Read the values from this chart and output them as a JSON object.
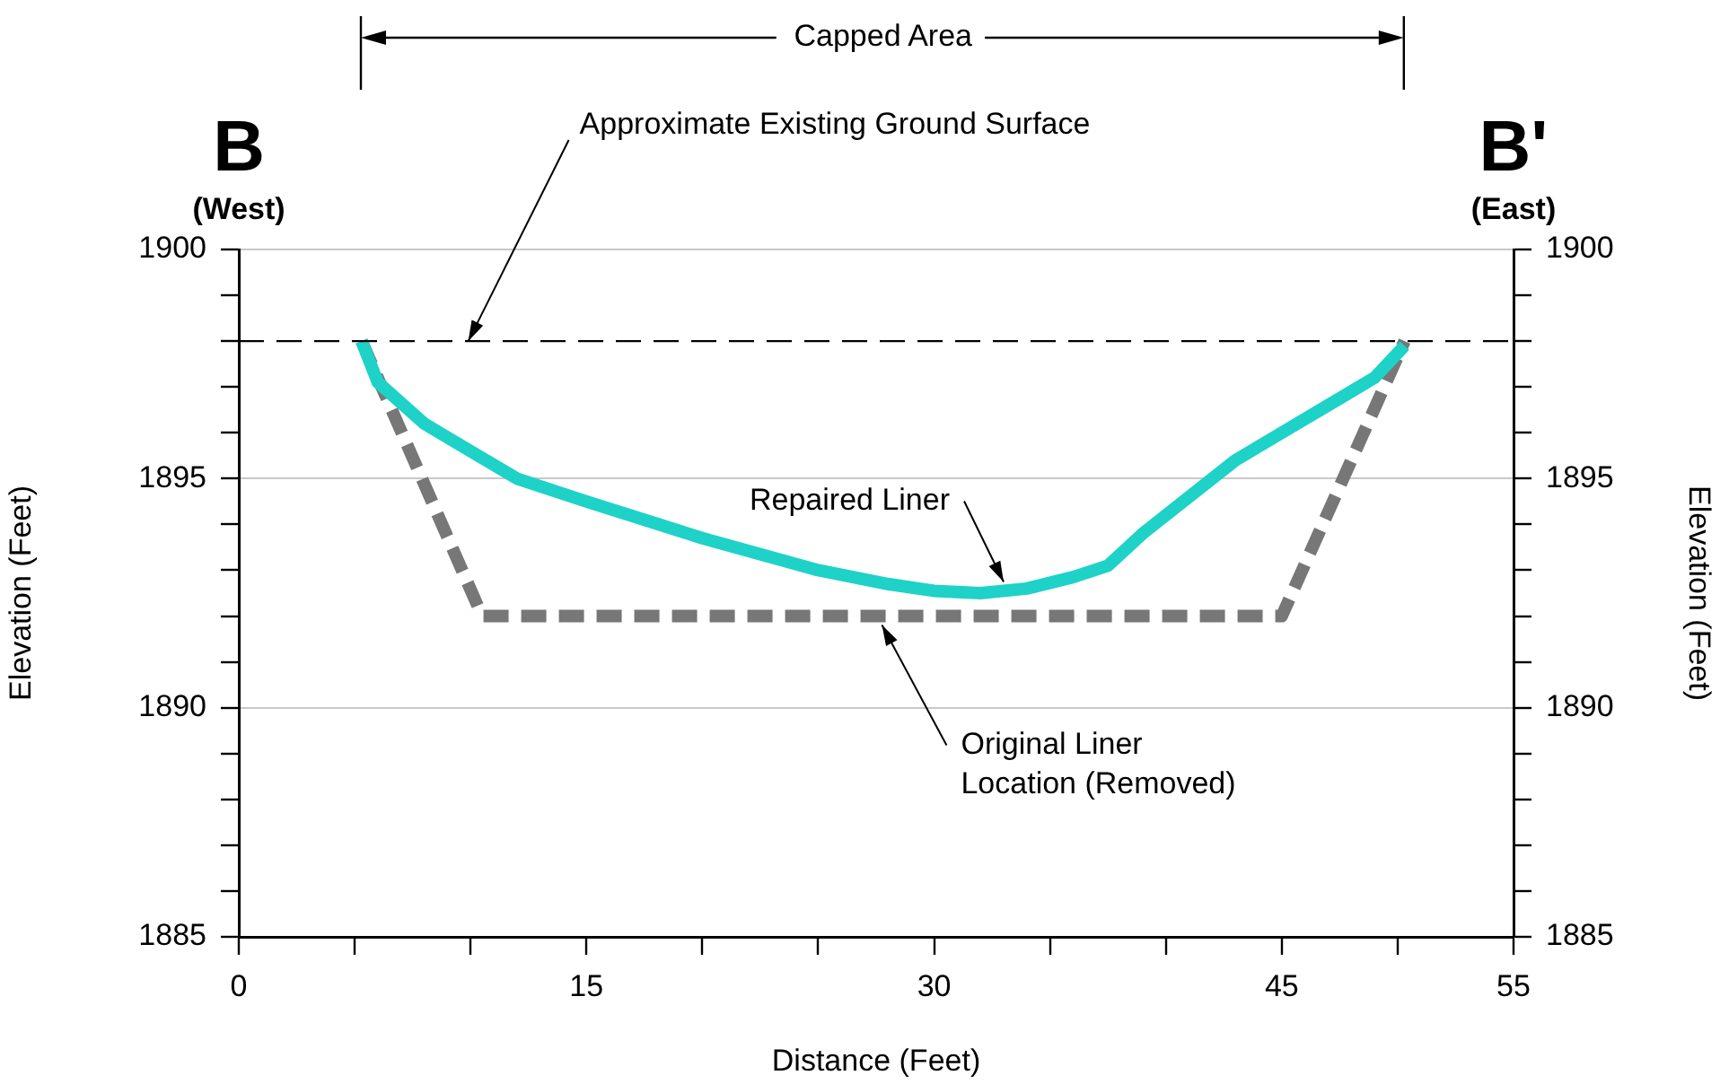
{
  "chart_data": {
    "type": "line",
    "xlabel": "Distance (Feet)",
    "ylabel": "Elevation (Feet)",
    "y2label": "Elevation (Feet)",
    "xlim": [
      0,
      55
    ],
    "xticks": [
      0,
      {
        "value": 5,
        "label": null
      },
      {
        "value": 10,
        "label": null
      },
      15,
      {
        "value": 20,
        "label": null
      },
      {
        "value": 25,
        "label": null
      },
      30,
      {
        "value": 35,
        "label": null
      },
      {
        "value": 40,
        "label": null
      },
      45,
      {
        "value": 50,
        "label": null
      },
      55
    ],
    "ylim": [
      1885,
      1900
    ],
    "yticks": [
      1885,
      {
        "value": 1886,
        "label": null
      },
      {
        "value": 1887,
        "label": null
      },
      {
        "value": 1888,
        "label": null
      },
      {
        "value": 1889,
        "label": null
      },
      1890,
      {
        "value": 1891,
        "label": null
      },
      {
        "value": 1892,
        "label": null
      },
      {
        "value": 1893,
        "label": null
      },
      {
        "value": 1894,
        "label": null
      },
      1895,
      {
        "value": 1896,
        "label": null
      },
      {
        "value": 1897,
        "label": null
      },
      {
        "value": 1898,
        "label": null
      },
      {
        "value": 1899,
        "label": null
      },
      1900
    ],
    "y2lim": [
      1885,
      1900
    ],
    "y2ticks": [
      1885,
      {
        "value": 1886,
        "label": null
      },
      {
        "value": 1887,
        "label": null
      },
      {
        "value": 1888,
        "label": null
      },
      {
        "value": 1889,
        "label": null
      },
      1890,
      {
        "value": 1891,
        "label": null
      },
      {
        "value": 1892,
        "label": null
      },
      {
        "value": 1893,
        "label": null
      },
      {
        "value": 1894,
        "label": null
      },
      1895,
      {
        "value": 1896,
        "label": null
      },
      {
        "value": 1897,
        "label": null
      },
      {
        "value": 1898,
        "label": null
      },
      {
        "value": 1899,
        "label": null
      },
      1900
    ],
    "grid": "y",
    "legend": false,
    "marker": "none",
    "series": [
      {
        "name": "Repaired Liner",
        "color": "#1ed2c8",
        "line_style": "solid",
        "x": [
          5.3,
          6,
          8,
          10,
          12,
          15,
          20,
          25,
          28,
          30,
          32,
          34,
          36,
          37.5,
          39,
          41,
          43,
          45,
          47,
          49,
          50.3
        ],
        "values": [
          1898,
          1897.1,
          1896.2,
          1895.6,
          1895,
          1894.5,
          1893.7,
          1893,
          1892.7,
          1892.55,
          1892.5,
          1892.6,
          1892.85,
          1893.1,
          1893.8,
          1894.6,
          1895.4,
          1896,
          1896.6,
          1897.2,
          1897.9
        ]
      },
      {
        "name": "Original Liner Location (Removed)",
        "color": "#777777",
        "line_style": "dashed",
        "x": [
          5.3,
          10.5,
          45,
          50.3
        ],
        "values": [
          1898,
          1892,
          1892,
          1898
        ]
      }
    ],
    "ref_lines": [
      {
        "axis": "y",
        "value": 1898,
        "label": "Approximate Existing Ground Surface",
        "color": "#000000",
        "line_style": "dashed"
      }
    ],
    "annotations": [
      "B",
      "(West)",
      "B'",
      "(East)",
      "Capped Area"
    ]
  }
}
